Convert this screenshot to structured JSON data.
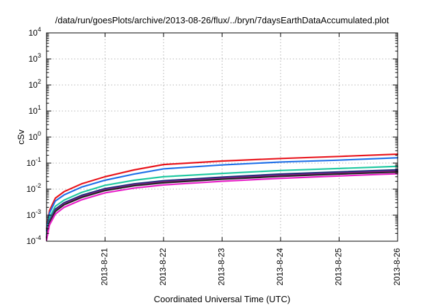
{
  "chart_data": {
    "type": "line",
    "title": "/data/run/goesPlots/archive/2013-08-26/flux/../bryn/7daysEarthDataAccumulated.plot",
    "xlabel": "Coordinated Universal Time (UTC)",
    "ylabel": "cSv",
    "yscale": "log",
    "ylim": [
      0.0001,
      10000
    ],
    "xlim": [
      0,
      6
    ],
    "grid": true,
    "xtick_values": [
      1,
      2,
      3,
      4,
      5,
      6
    ],
    "xtick_labels": [
      "2013-8-21",
      "2013-8-22",
      "2013-8-23",
      "2013-8-24",
      "2013-8-25",
      "2013-8-26"
    ],
    "ytick_values": [
      0.0001,
      0.001,
      0.01,
      0.1,
      1,
      10,
      100,
      1000,
      10000
    ],
    "ytick_labels": [
      {
        "base": "10",
        "exp": "-4"
      },
      {
        "base": "10",
        "exp": "-3"
      },
      {
        "base": "10",
        "exp": "-2"
      },
      {
        "base": "10",
        "exp": "-1"
      },
      {
        "base": "10",
        "exp": "0"
      },
      {
        "base": "10",
        "exp": "1"
      },
      {
        "base": "10",
        "exp": "2"
      },
      {
        "base": "10",
        "exp": "3"
      },
      {
        "base": "10",
        "exp": "4"
      }
    ],
    "series": [
      {
        "color": "#e8141c",
        "x": [
          0.0,
          0.05,
          0.15,
          0.3,
          0.6,
          1.0,
          1.5,
          2.0,
          3.0,
          4.0,
          5.0,
          6.0
        ],
        "values": [
          0.0003,
          0.0015,
          0.0045,
          0.008,
          0.016,
          0.03,
          0.055,
          0.088,
          0.12,
          0.15,
          0.18,
          0.22
        ]
      },
      {
        "color": "#1e6fe8",
        "x": [
          0.0,
          0.05,
          0.15,
          0.3,
          0.6,
          1.0,
          1.5,
          2.0,
          3.0,
          4.0,
          5.0,
          6.0
        ],
        "values": [
          0.00025,
          0.0012,
          0.0035,
          0.006,
          0.012,
          0.022,
          0.038,
          0.06,
          0.085,
          0.11,
          0.13,
          0.16
        ]
      },
      {
        "color": "#1ec8a0",
        "x": [
          0.0,
          0.05,
          0.15,
          0.3,
          0.6,
          1.0,
          1.5,
          2.0,
          3.0,
          4.0,
          5.0,
          6.0
        ],
        "values": [
          0.00018,
          0.0008,
          0.0022,
          0.0038,
          0.0075,
          0.014,
          0.022,
          0.03,
          0.04,
          0.052,
          0.062,
          0.075
        ]
      },
      {
        "color": "#1b2e7a",
        "x": [
          0.0,
          0.05,
          0.15,
          0.3,
          0.6,
          1.0,
          1.5,
          2.0,
          3.0,
          4.0,
          5.0,
          6.0
        ],
        "values": [
          0.00015,
          0.0006,
          0.0017,
          0.003,
          0.0058,
          0.0105,
          0.016,
          0.021,
          0.029,
          0.038,
          0.046,
          0.055
        ]
      },
      {
        "color": "#8a1e8a",
        "x": [
          0.0,
          0.05,
          0.15,
          0.3,
          0.6,
          1.0,
          1.5,
          2.0,
          3.0,
          4.0,
          5.0,
          6.0
        ],
        "values": [
          0.00014,
          0.00055,
          0.0015,
          0.0027,
          0.0052,
          0.0095,
          0.0145,
          0.019,
          0.026,
          0.034,
          0.041,
          0.049
        ]
      },
      {
        "color": "#262626",
        "x": [
          0.0,
          0.05,
          0.15,
          0.3,
          0.6,
          1.0,
          1.5,
          2.0,
          3.0,
          4.0,
          5.0,
          6.0
        ],
        "values": [
          0.00013,
          0.0005,
          0.0014,
          0.0025,
          0.0048,
          0.0088,
          0.0135,
          0.0175,
          0.024,
          0.031,
          0.038,
          0.045
        ]
      },
      {
        "color": "#e81ec8",
        "x": [
          0.0,
          0.05,
          0.15,
          0.3,
          0.6,
          1.0,
          1.5,
          2.0,
          3.0,
          4.0,
          5.0,
          6.0
        ],
        "values": [
          0.00011,
          0.00042,
          0.0011,
          0.002,
          0.0039,
          0.0072,
          0.011,
          0.0145,
          0.02,
          0.026,
          0.032,
          0.039
        ]
      }
    ]
  }
}
